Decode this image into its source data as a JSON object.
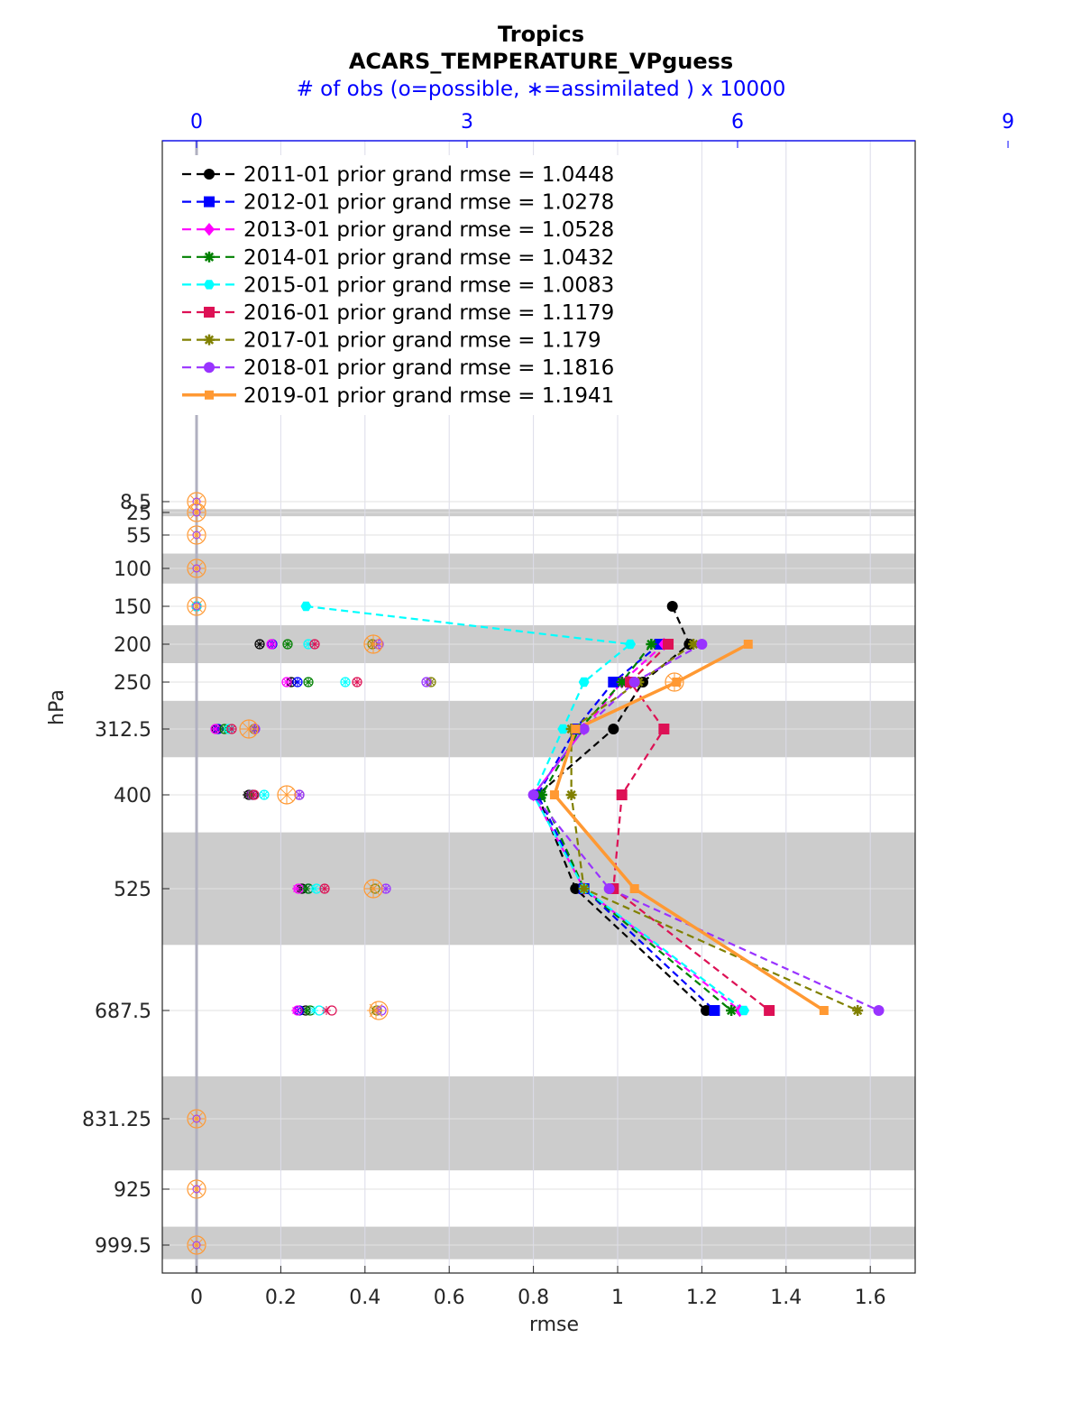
{
  "chart_data": {
    "type": "line",
    "title": [
      "Tropics",
      "ACARS_TEMPERATURE_VPguess"
    ],
    "top_axis_label": "# of obs (o=possible, ∗=assimilated ) x 10000",
    "xlabel": "rmse",
    "ylabel": "hPa",
    "xlim": [
      -0.08,
      1.7
    ],
    "x_ticks": [
      0,
      0.2,
      0.4,
      0.6,
      0.8,
      1,
      1.2,
      1.4,
      1.6
    ],
    "x_tick_labels": [
      "0",
      "0.2",
      "0.4",
      "0.6",
      "0.8",
      "1",
      "1.2",
      "1.4",
      "1.6"
    ],
    "top_ticks": [
      0,
      3,
      6,
      9
    ],
    "top_tick_labels": [
      "0",
      "3",
      "6",
      "9"
    ],
    "obs_scale": 4.67,
    "levels": [
      8.5,
      25,
      55,
      100,
      150,
      200,
      250,
      312.5,
      400,
      525,
      687.5,
      831.25,
      925,
      999.5
    ],
    "level_labels": [
      "8.5",
      "25",
      "55",
      "100",
      "150",
      "200",
      "250",
      "312.5",
      "400",
      "525",
      "687.5",
      "831.25",
      "925",
      "999.5"
    ],
    "shaded_bands": [
      [
        20,
        30
      ],
      [
        80,
        120
      ],
      [
        175,
        225
      ],
      [
        275,
        350
      ],
      [
        450,
        600
      ],
      [
        775,
        900
      ],
      [
        975,
        1025
      ]
    ],
    "series": [
      {
        "name": "2011-01",
        "legend": "2011-01 prior grand rmse = 1.0448",
        "color": "#000000",
        "marker": "circle",
        "style": "dashed",
        "levels": [
          150,
          200,
          250,
          312.5,
          400,
          525,
          687.5
        ],
        "rmse": [
          1.13,
          1.17,
          1.06,
          0.99,
          0.81,
          0.9,
          1.21
        ],
        "obs_possible": [
          0,
          0.7,
          1.05,
          0.22,
          0.58,
          1.17,
          1.21
        ],
        "obs_assim": [
          0,
          0.7,
          1.05,
          0.22,
          0.56,
          1.15,
          1.18
        ]
      },
      {
        "name": "2012-01",
        "legend": "2012-01 prior grand rmse = 1.0278",
        "color": "#0000ff",
        "marker": "square",
        "style": "dashed",
        "levels": [
          200,
          250,
          312.5,
          400,
          525,
          687.5
        ],
        "rmse": [
          1.1,
          0.99,
          0.9,
          0.81,
          0.92,
          1.23
        ],
        "obs_possible": [
          0.84,
          1.12,
          0.24,
          0.62,
          1.24,
          1.14
        ],
        "obs_assim": [
          0.84,
          1.12,
          0.24,
          0.6,
          1.22,
          1.12
        ]
      },
      {
        "name": "2013-01",
        "legend": "2013-01 prior grand rmse = 1.0528",
        "color": "#ff00ff",
        "marker": "diamond",
        "style": "dashed",
        "levels": [
          200,
          250,
          312.5,
          400,
          525,
          687.5
        ],
        "rmse": [
          1.11,
          1.01,
          0.92,
          0.8,
          0.92,
          1.29
        ],
        "obs_possible": [
          0.83,
          1.0,
          0.21,
          0.62,
          1.13,
          1.12
        ],
        "obs_assim": [
          0.83,
          1.0,
          0.21,
          0.6,
          1.11,
          1.1
        ]
      },
      {
        "name": "2014-01",
        "legend": "2014-01 prior grand rmse = 1.0432",
        "color": "#008000",
        "marker": "star",
        "style": "dashed",
        "levels": [
          200,
          250,
          312.5,
          400,
          525,
          687.5
        ],
        "rmse": [
          1.08,
          1.01,
          0.91,
          0.82,
          0.92,
          1.27
        ],
        "obs_possible": [
          1.01,
          1.24,
          0.31,
          0.63,
          1.24,
          1.26
        ],
        "obs_assim": [
          1.01,
          1.24,
          0.31,
          0.61,
          1.22,
          1.23
        ]
      },
      {
        "name": "2015-01",
        "legend": "2015-01 prior grand rmse = 1.0083",
        "color": "#00ffff",
        "marker": "hexagon",
        "style": "dashed",
        "levels": [
          150,
          200,
          250,
          312.5,
          400,
          525,
          687.5
        ],
        "rmse": [
          0.26,
          1.03,
          0.92,
          0.87,
          0.8,
          0.92,
          1.3
        ],
        "obs_possible": [
          0,
          1.24,
          1.65,
          0.36,
          0.75,
          1.33,
          1.36
        ],
        "obs_assim": [
          0,
          1.24,
          1.65,
          0.36,
          0.75,
          1.31,
          1.3
        ]
      },
      {
        "name": "2016-01",
        "legend": "2016-01 prior grand rmse = 1.1179",
        "color": "#dd1155",
        "marker": "square",
        "style": "dashed",
        "levels": [
          200,
          250,
          312.5,
          400,
          525,
          687.5
        ],
        "rmse": [
          1.12,
          1.03,
          1.11,
          1.01,
          0.99,
          1.36
        ],
        "obs_possible": [
          1.31,
          1.78,
          0.39,
          0.64,
          1.42,
          1.5
        ],
        "obs_assim": [
          1.31,
          1.78,
          0.39,
          0.64,
          1.42,
          1.44
        ]
      },
      {
        "name": "2017-01",
        "legend": "2017-01 prior grand rmse = 1.179",
        "color": "#808000",
        "marker": "star",
        "style": "dashed",
        "levels": [
          200,
          250,
          312.5,
          400,
          525,
          687.5
        ],
        "rmse": [
          1.18,
          1.05,
          0.89,
          0.89,
          0.92,
          1.57
        ],
        "obs_possible": [
          1.95,
          2.6,
          0.64,
          1.14,
          1.98,
          2.0
        ],
        "obs_assim": [
          1.95,
          2.6,
          0.64,
          1.14,
          1.96,
          1.97
        ]
      },
      {
        "name": "2018-01",
        "legend": "2018-01 prior grand rmse = 1.1816",
        "color": "#9933ff",
        "marker": "circle",
        "style": "dashed",
        "levels": [
          200,
          250,
          312.5,
          400,
          525,
          687.5
        ],
        "rmse": [
          1.2,
          1.04,
          0.92,
          0.8,
          0.98,
          1.62
        ],
        "obs_possible": [
          2.02,
          2.55,
          0.65,
          1.14,
          2.1,
          2.05
        ],
        "obs_assim": [
          2.02,
          2.55,
          0.65,
          1.14,
          2.1,
          2.02
        ]
      },
      {
        "name": "2019-01",
        "legend": "2019-01 prior grand rmse = 1.1941",
        "color": "#ff9933",
        "marker": "square",
        "style": "solid",
        "levels": [
          200,
          250,
          312.5,
          400,
          525,
          687.5
        ],
        "rmse": [
          1.31,
          1.14,
          0.9,
          0.85,
          1.04,
          1.49
        ],
        "obs_possible": [
          1.96,
          5.3,
          0.58,
          1.0,
          1.96,
          2.02
        ],
        "obs_assim": [
          1.96,
          5.3,
          0.58,
          1.0,
          1.96,
          1.99
        ]
      }
    ],
    "zero_obs_levels": [
      8.5,
      25,
      55,
      100,
      150,
      831.25,
      925,
      999.5
    ],
    "legend_position": "top-left",
    "grid": true
  }
}
